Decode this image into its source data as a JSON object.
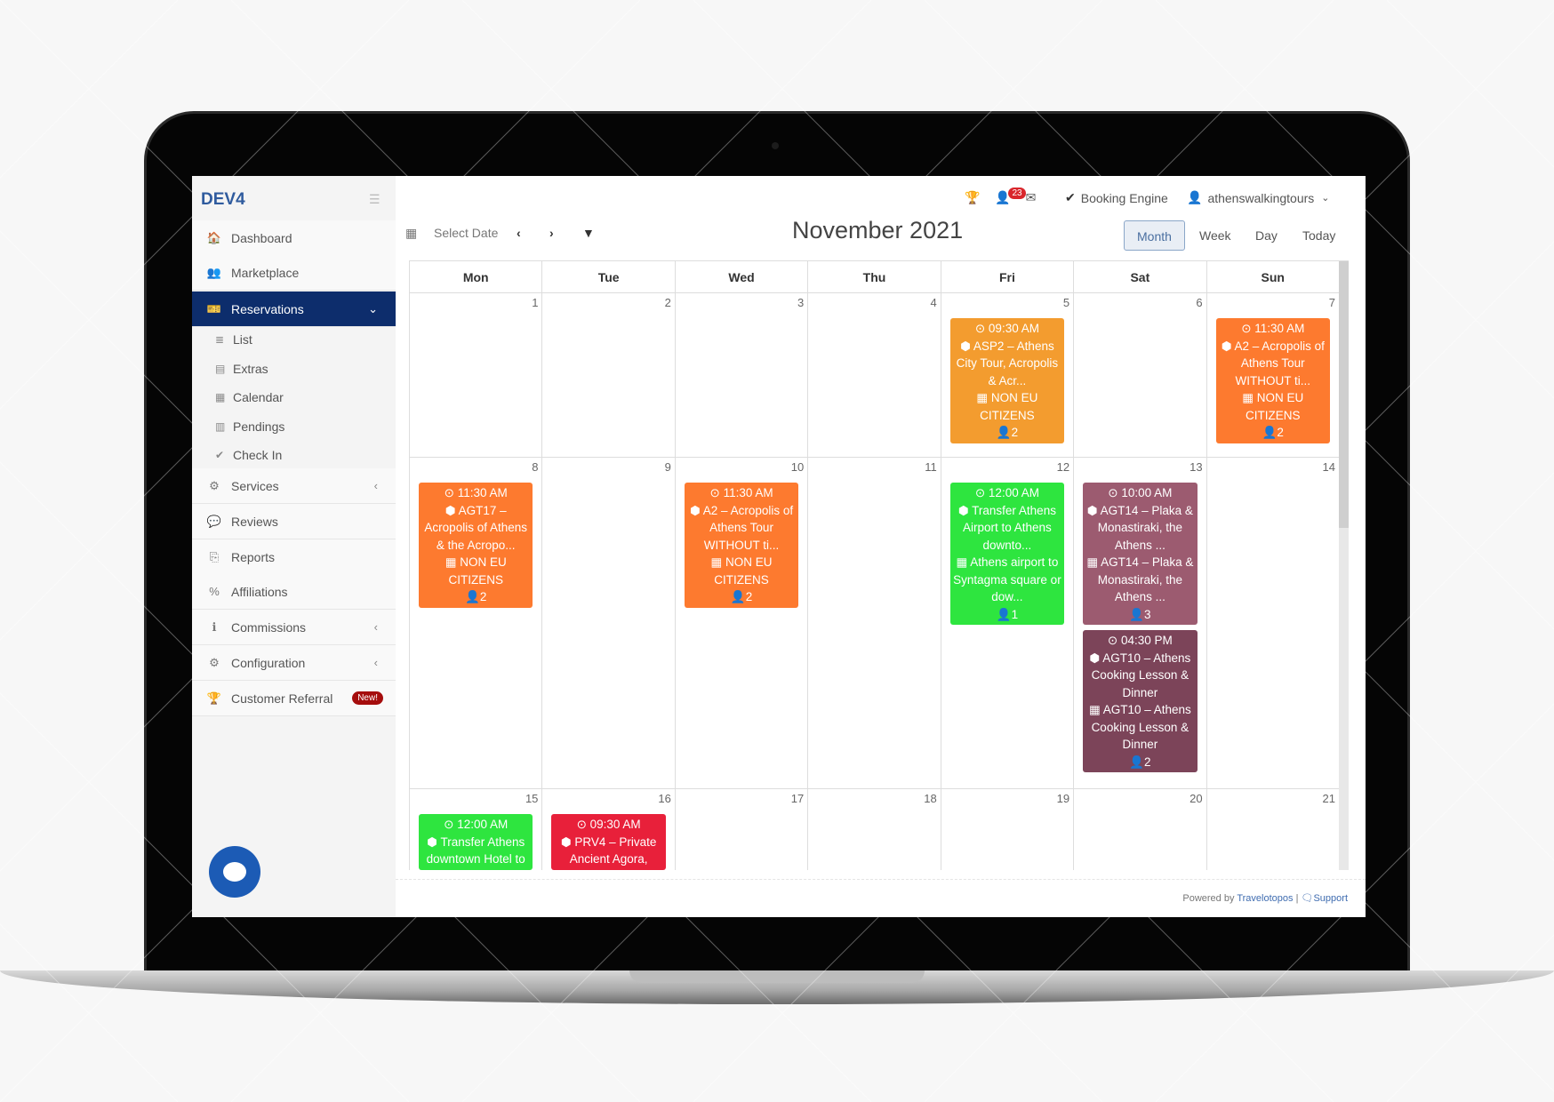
{
  "sidebar": {
    "brand": "DEV4",
    "items": [
      {
        "label": "Dashboard",
        "icon": "home-icon",
        "glyph": "🏠"
      },
      {
        "label": "Marketplace",
        "icon": "users-plus-icon",
        "glyph": "👥"
      },
      {
        "label": "Reservations",
        "icon": "ticket-icon",
        "glyph": "🎫",
        "active": true,
        "arrow": "⌄"
      },
      {
        "label": "Services",
        "icon": "cubes-icon",
        "glyph": "⚙",
        "arrow": "‹"
      },
      {
        "label": "Reviews",
        "icon": "comments-icon",
        "glyph": "💬"
      },
      {
        "label": "Reports",
        "icon": "copy-icon",
        "glyph": "⎘"
      },
      {
        "label": "Affiliations",
        "icon": "link-icon",
        "glyph": "%"
      },
      {
        "label": "Commissions",
        "icon": "info-icon",
        "glyph": "ℹ",
        "arrow": "‹"
      },
      {
        "label": "Configuration",
        "icon": "cogs-icon",
        "glyph": "⚙",
        "arrow": "‹"
      },
      {
        "label": "Customer Referral",
        "icon": "trophy-icon",
        "glyph": "🏆",
        "badge": "New!"
      }
    ],
    "subitems": [
      {
        "label": "List",
        "icon": "list-icon",
        "glyph": "≣"
      },
      {
        "label": "Extras",
        "icon": "extras-icon",
        "glyph": "▤"
      },
      {
        "label": "Calendar",
        "icon": "calendar-icon",
        "glyph": "▦"
      },
      {
        "label": "Pendings",
        "icon": "table-icon",
        "glyph": "▥"
      },
      {
        "label": "Check In",
        "icon": "check-icon",
        "glyph": "✔"
      }
    ]
  },
  "topbar": {
    "notification_count": "23",
    "booking_engine": "Booking Engine",
    "user": "athenswalkingtours"
  },
  "toolbar": {
    "select_date": "Select Date",
    "title": "November 2021",
    "views": [
      "Month",
      "Week",
      "Day",
      "Today"
    ],
    "selected_view": "Month"
  },
  "calendar": {
    "weekdays": [
      "Mon",
      "Tue",
      "Wed",
      "Thu",
      "Fri",
      "Sat",
      "Sun"
    ],
    "weeks": [
      [
        {
          "day": "1"
        },
        {
          "day": "2"
        },
        {
          "day": "3"
        },
        {
          "day": "4"
        },
        {
          "day": "5",
          "events": [
            {
              "time": "09:30 AM",
              "product": "ASP2 – Athens City Tour, Acropolis & Acr...",
              "option": "NON EU CITIZENS",
              "pax": "2",
              "color": "#f39c2f"
            }
          ]
        },
        {
          "day": "6"
        },
        {
          "day": "7",
          "events": [
            {
              "time": "11:30 AM",
              "product": "A2 – Acropolis of Athens Tour WITHOUT ti...",
              "option": "NON EU CITIZENS",
              "pax": "2",
              "color": "#fd7a2f"
            }
          ]
        }
      ],
      [
        {
          "day": "8",
          "events": [
            {
              "time": "11:30 AM",
              "product": "AGT17 – Acropolis of Athens & the Acropo...",
              "option": "NON EU CITIZENS",
              "pax": "2",
              "color": "#fd7a2f"
            }
          ]
        },
        {
          "day": "9"
        },
        {
          "day": "10",
          "events": [
            {
              "time": "11:30 AM",
              "product": "A2 – Acropolis of Athens Tour WITHOUT ti...",
              "option": "NON EU CITIZENS",
              "pax": "2",
              "color": "#fd7a2f"
            }
          ]
        },
        {
          "day": "11"
        },
        {
          "day": "12",
          "events": [
            {
              "time": "12:00 AM",
              "product": "Transfer Athens Airport to Athens downto...",
              "option": "Athens airport to Syntagma square or dow...",
              "pax": "1",
              "color": "#2ee53f"
            }
          ]
        },
        {
          "day": "13",
          "events": [
            {
              "time": "10:00 AM",
              "product": "AGT14 – Plaka & Monastiraki, the Athens ...",
              "option": "AGT14 – Plaka & Monastiraki, the Athens ...",
              "pax": "3",
              "color": "#9c5b70"
            },
            {
              "time": "04:30 PM",
              "product": "AGT10 – Athens Cooking Lesson & Dinner",
              "option": "AGT10 – Athens Cooking Lesson & Dinner",
              "pax": "2",
              "color": "#7c4459"
            }
          ]
        },
        {
          "day": "14"
        }
      ],
      [
        {
          "day": "15",
          "events": [
            {
              "time": "12:00 AM",
              "product": "Transfer Athens downtown Hotel to",
              "color": "#2ee53f"
            }
          ]
        },
        {
          "day": "16",
          "events": [
            {
              "time": "09:30 AM",
              "product": "PRV4 – Private Ancient Agora,",
              "color": "#e8203a"
            }
          ]
        },
        {
          "day": "17"
        },
        {
          "day": "18"
        },
        {
          "day": "19"
        },
        {
          "day": "20"
        },
        {
          "day": "21"
        }
      ]
    ]
  },
  "footer": {
    "powered_by": "Powered by",
    "brand_link": "Travelotopos",
    "separator": "|",
    "support": "Support"
  },
  "colors": {
    "sidebar_active": "#0d2d6c",
    "brand": "#2f5b9e"
  }
}
